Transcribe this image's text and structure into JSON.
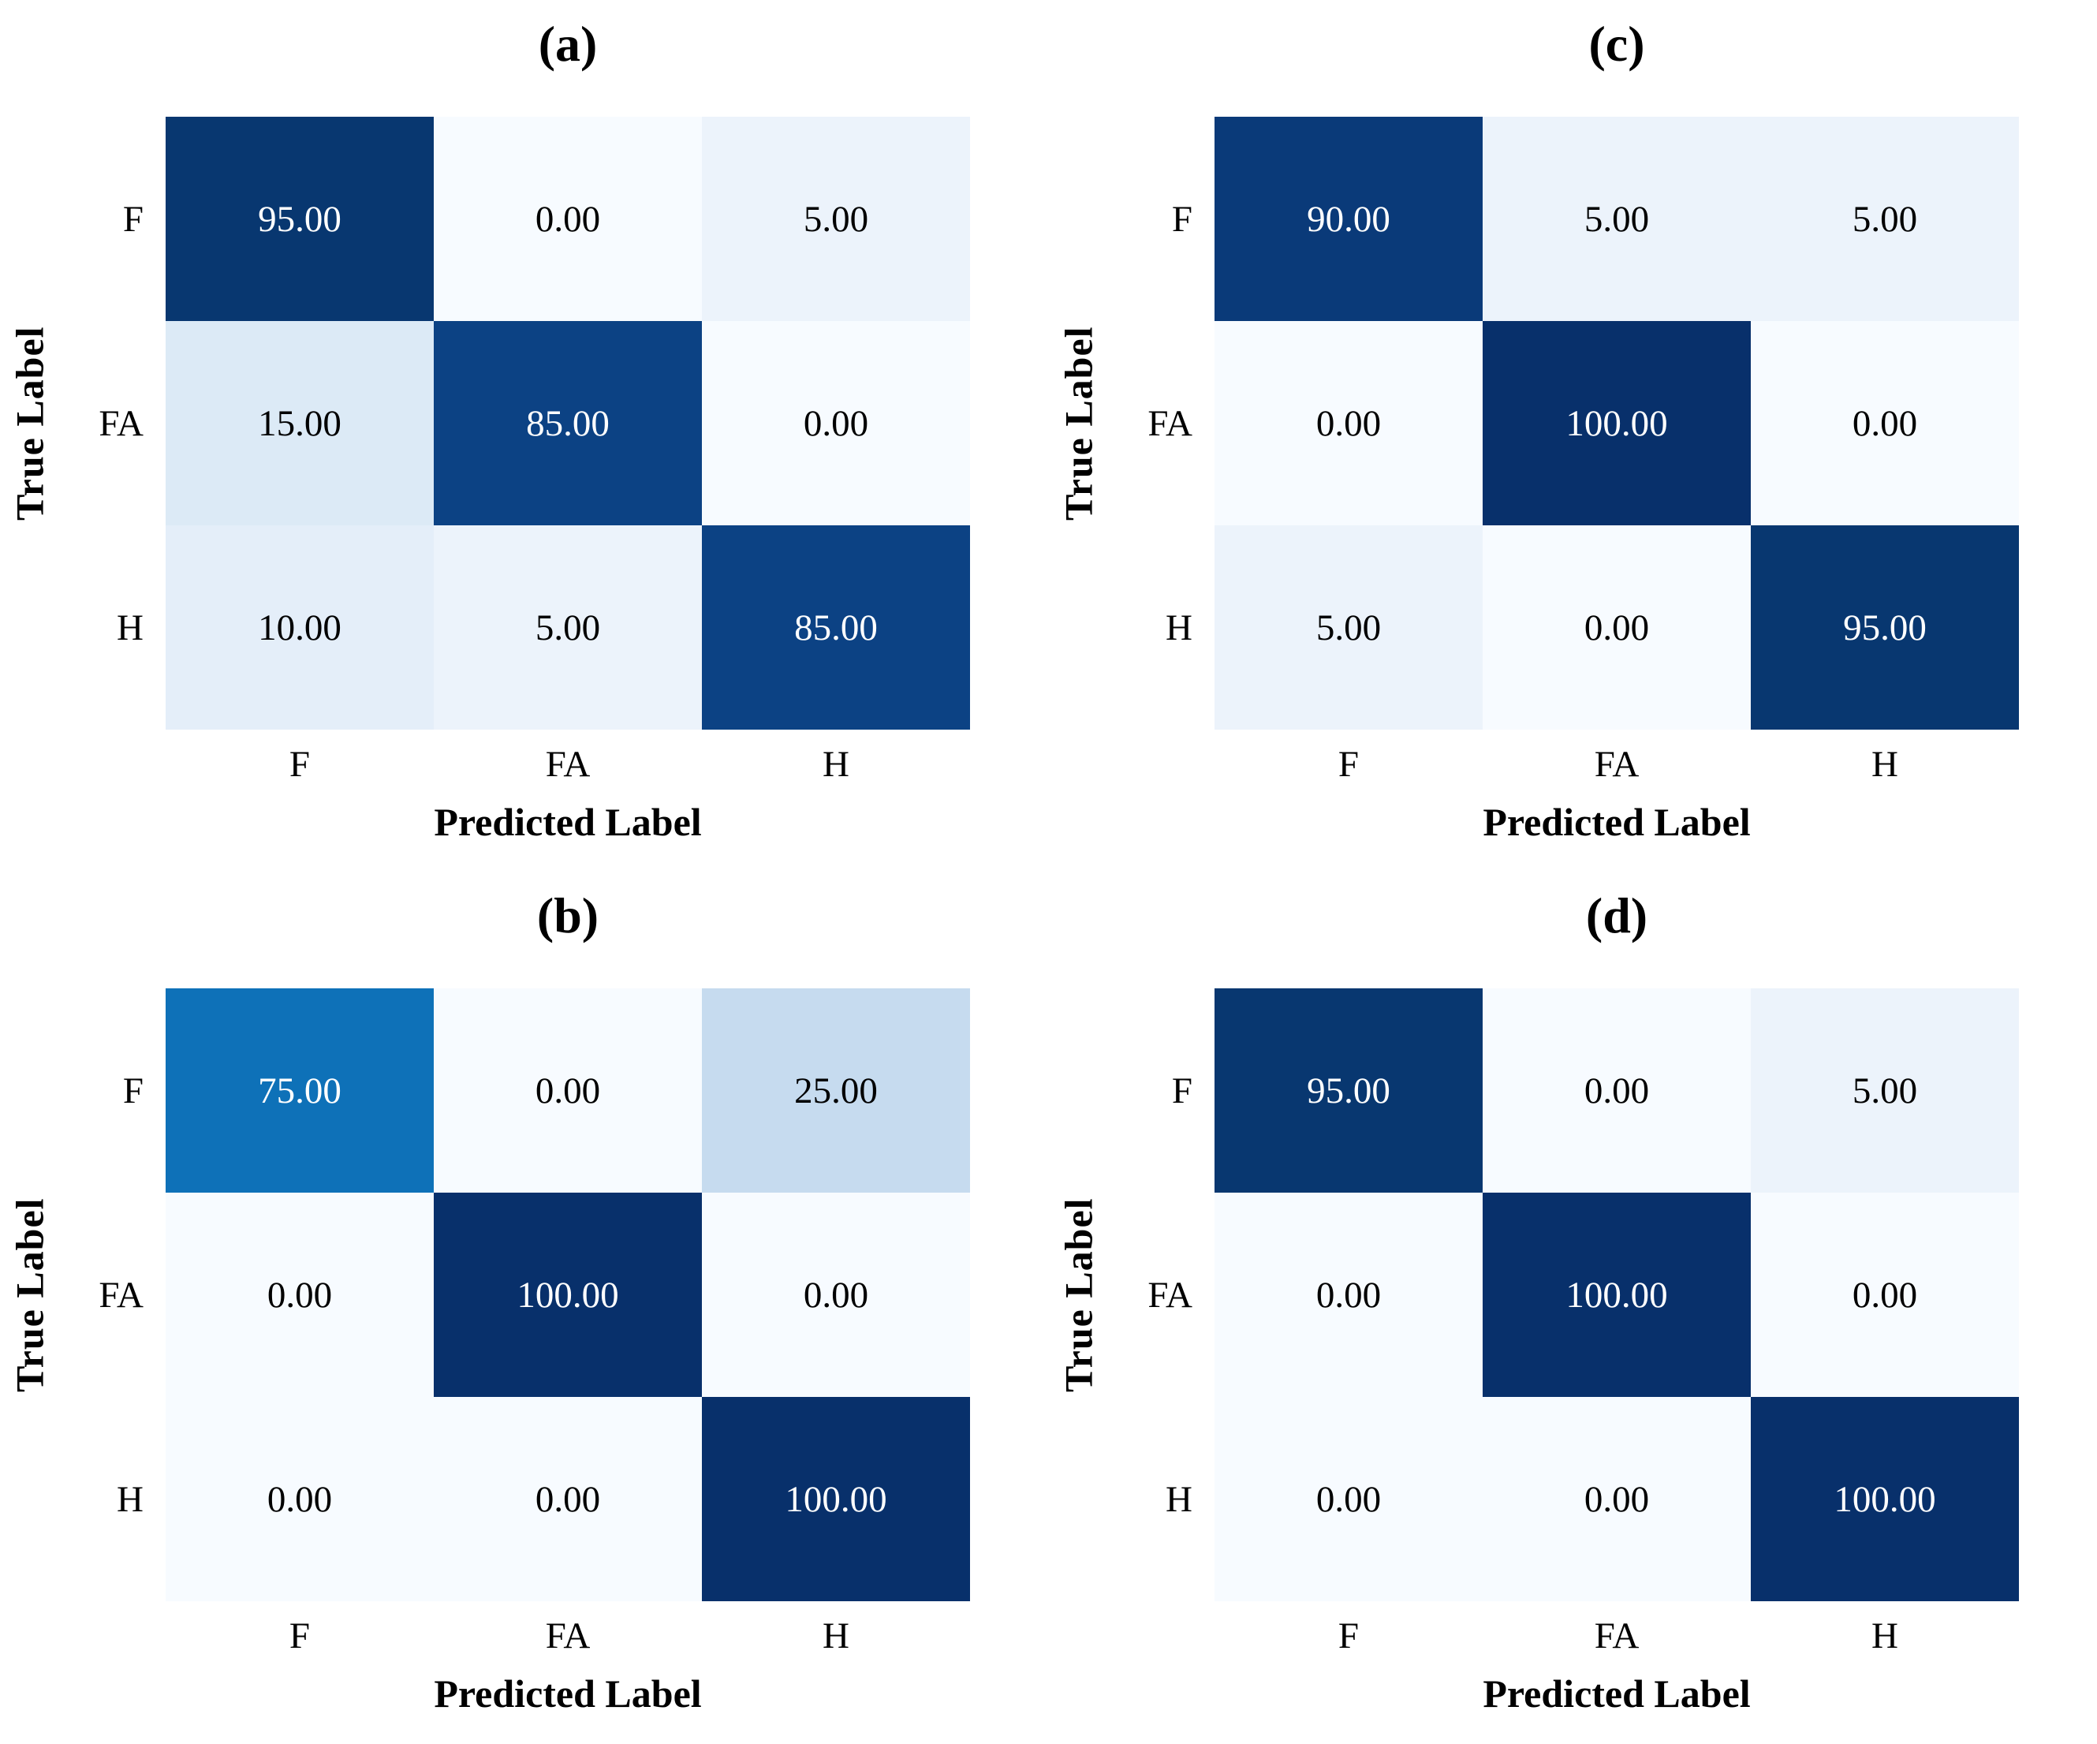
{
  "figure": {
    "background": "#ffffff",
    "xlabel": "Predicted Label",
    "ylabel": "True Label",
    "x_categories": [
      "F",
      "FA",
      "H"
    ],
    "y_categories": [
      "F",
      "FA",
      "H"
    ],
    "layout_order": [
      "a",
      "c",
      "b",
      "d"
    ],
    "value_colors": {
      "0": "#f7fbff",
      "5": "#ecf3fb",
      "10": "#e4eef9",
      "15": "#dceaf6",
      "25": "#c6dbef",
      "75": "#0e71b8",
      "85": "#0c4284",
      "90": "#0a3a79",
      "95": "#083770",
      "100": "#08306b"
    },
    "white_text_threshold": 50,
    "cell_text_colors": {
      "on_light": "#000000",
      "on_dark": "#ffffff"
    },
    "value_format_decimals": 2
  },
  "chart_data": [
    {
      "id": "a",
      "type": "heatmap",
      "title": "(a)",
      "xlabel": "Predicted Label",
      "ylabel": "True Label",
      "x_categories": [
        "F",
        "FA",
        "H"
      ],
      "y_categories": [
        "F",
        "FA",
        "H"
      ],
      "values": [
        [
          95.0,
          0.0,
          5.0
        ],
        [
          15.0,
          85.0,
          0.0
        ],
        [
          10.0,
          5.0,
          85.0
        ]
      ],
      "colormap": "Blues",
      "vmin": 0,
      "vmax": 100
    },
    {
      "id": "b",
      "type": "heatmap",
      "title": "(b)",
      "xlabel": "Predicted Label",
      "ylabel": "True Label",
      "x_categories": [
        "F",
        "FA",
        "H"
      ],
      "y_categories": [
        "F",
        "FA",
        "H"
      ],
      "values": [
        [
          75.0,
          0.0,
          25.0
        ],
        [
          0.0,
          100.0,
          0.0
        ],
        [
          0.0,
          0.0,
          100.0
        ]
      ],
      "colormap": "Blues",
      "vmin": 0,
      "vmax": 100
    },
    {
      "id": "c",
      "type": "heatmap",
      "title": "(c)",
      "xlabel": "Predicted Label",
      "ylabel": "True Label",
      "x_categories": [
        "F",
        "FA",
        "H"
      ],
      "y_categories": [
        "F",
        "FA",
        "H"
      ],
      "values": [
        [
          90.0,
          5.0,
          5.0
        ],
        [
          0.0,
          100.0,
          0.0
        ],
        [
          5.0,
          0.0,
          95.0
        ]
      ],
      "colormap": "Blues",
      "vmin": 0,
      "vmax": 100
    },
    {
      "id": "d",
      "type": "heatmap",
      "title": "(d)",
      "xlabel": "Predicted Label",
      "ylabel": "True Label",
      "x_categories": [
        "F",
        "FA",
        "H"
      ],
      "y_categories": [
        "F",
        "FA",
        "H"
      ],
      "values": [
        [
          95.0,
          0.0,
          5.0
        ],
        [
          0.0,
          100.0,
          0.0
        ],
        [
          0.0,
          0.0,
          100.0
        ]
      ],
      "colormap": "Blues",
      "vmin": 0,
      "vmax": 100
    }
  ]
}
